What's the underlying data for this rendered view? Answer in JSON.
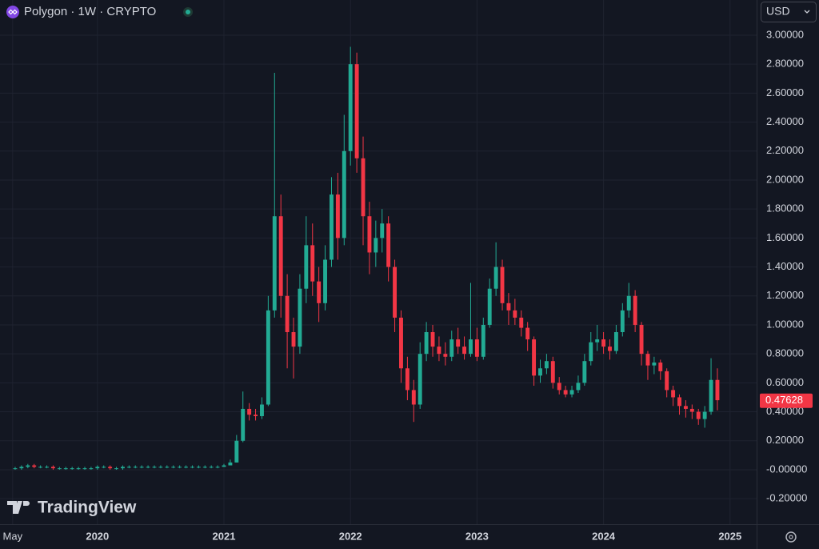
{
  "chart_data": {
    "type": "candlestick",
    "title": "Polygon · 1W · CRYPTO",
    "currency": "USD",
    "watermark": "TradingView",
    "up_color": "#22ab94",
    "down_color": "#f23645",
    "grid": true,
    "xlim": [
      2019.23,
      2025.21
    ],
    "xticks": [
      {
        "value": 2019.33,
        "label": "May"
      },
      2020,
      2021,
      2022,
      2023,
      2024,
      2025
    ],
    "ylim": [
      -0.376,
      3.243
    ],
    "yticks": [
      {
        "value": -0.2,
        "label": "-0.20000"
      },
      {
        "value": 0,
        "label": "-0.00000"
      },
      {
        "value": 0.2,
        "label": "0.20000"
      },
      {
        "value": 0.4,
        "label": "0.40000"
      },
      {
        "value": 0.6,
        "label": "0.60000"
      },
      {
        "value": 0.8,
        "label": "0.80000"
      },
      {
        "value": 1,
        "label": "1.00000"
      },
      {
        "value": 1.2,
        "label": "1.20000"
      },
      {
        "value": 1.4,
        "label": "1.40000"
      },
      {
        "value": 1.6,
        "label": "1.60000"
      },
      {
        "value": 1.8,
        "label": "1.80000"
      },
      {
        "value": 2,
        "label": "2.00000"
      },
      {
        "value": 2.2,
        "label": "2.20000"
      },
      {
        "value": 2.4,
        "label": "2.40000"
      },
      {
        "value": 2.6,
        "label": "2.60000"
      },
      {
        "value": 2.8,
        "label": "2.80000"
      },
      {
        "value": 3,
        "label": "3.00000"
      }
    ],
    "last_price": 0.47628,
    "x": [
      2019.35,
      2019.4,
      2019.45,
      2019.5,
      2019.55,
      2019.6,
      2019.65,
      2019.7,
      2019.75,
      2019.8,
      2019.85,
      2019.9,
      2019.95,
      2020,
      2020.05,
      2020.1,
      2020.15,
      2020.2,
      2020.25,
      2020.3,
      2020.35,
      2020.4,
      2020.45,
      2020.5,
      2020.55,
      2020.6,
      2020.65,
      2020.7,
      2020.75,
      2020.8,
      2020.85,
      2020.9,
      2020.95,
      2021,
      2021.05,
      2021.1,
      2021.15,
      2021.2,
      2021.25,
      2021.3,
      2021.35,
      2021.4,
      2021.45,
      2021.5,
      2021.55,
      2021.6,
      2021.65,
      2021.7,
      2021.75,
      2021.8,
      2021.85,
      2021.9,
      2021.95,
      2022,
      2022.05,
      2022.1,
      2022.15,
      2022.2,
      2022.25,
      2022.3,
      2022.35,
      2022.4,
      2022.45,
      2022.5,
      2022.55,
      2022.6,
      2022.65,
      2022.7,
      2022.75,
      2022.8,
      2022.85,
      2022.9,
      2022.95,
      2023,
      2023.05,
      2023.1,
      2023.15,
      2023.2,
      2023.25,
      2023.3,
      2023.35,
      2023.4,
      2023.45,
      2023.5,
      2023.55,
      2023.6,
      2023.65,
      2023.7,
      2023.75,
      2023.8,
      2023.85,
      2023.9,
      2023.95,
      2024,
      2024.05,
      2024.1,
      2024.15,
      2024.2,
      2024.25,
      2024.3,
      2024.35,
      2024.4,
      2024.45,
      2024.5,
      2024.55,
      2024.6,
      2024.65,
      2024.7,
      2024.75,
      2024.8,
      2024.85,
      2024.9
    ],
    "open": [
      0.01,
      0.01,
      0.02,
      0.03,
      0.02,
      0.02,
      0.02,
      0.01,
      0.01,
      0.01,
      0.01,
      0.01,
      0.01,
      0.01,
      0.02,
      0.02,
      0.01,
      0.01,
      0.02,
      0.02,
      0.02,
      0.02,
      0.02,
      0.02,
      0.02,
      0.02,
      0.02,
      0.02,
      0.02,
      0.02,
      0.02,
      0.02,
      0.02,
      0.02,
      0.03,
      0.05,
      0.2,
      0.42,
      0.38,
      0.37,
      0.45,
      1.1,
      1.75,
      1.2,
      0.95,
      0.85,
      1.25,
      1.55,
      1.3,
      1.15,
      1.45,
      1.9,
      1.6,
      2.2,
      2.8,
      2.15,
      1.75,
      1.5,
      1.6,
      1.7,
      1.4,
      1.05,
      0.7,
      0.55,
      0.45,
      0.8,
      0.95,
      0.85,
      0.8,
      0.78,
      0.9,
      0.85,
      0.8,
      0.9,
      0.78,
      1.0,
      1.25,
      1.4,
      1.15,
      1.1,
      1.05,
      0.98,
      0.9,
      0.65,
      0.7,
      0.75,
      0.6,
      0.55,
      0.52,
      0.55,
      0.6,
      0.75,
      0.88,
      0.9,
      0.85,
      0.82,
      0.95,
      1.1,
      1.2,
      1.0,
      0.8,
      0.72,
      0.74,
      0.68,
      0.55,
      0.5,
      0.44,
      0.42,
      0.4,
      0.35,
      0.4,
      0.62
    ],
    "high": [
      0.02,
      0.03,
      0.04,
      0.04,
      0.03,
      0.03,
      0.03,
      0.02,
      0.02,
      0.02,
      0.02,
      0.02,
      0.02,
      0.03,
      0.03,
      0.03,
      0.02,
      0.03,
      0.03,
      0.03,
      0.03,
      0.03,
      0.03,
      0.03,
      0.03,
      0.03,
      0.03,
      0.03,
      0.03,
      0.03,
      0.03,
      0.03,
      0.03,
      0.04,
      0.07,
      0.24,
      0.54,
      0.46,
      0.42,
      0.5,
      1.2,
      2.74,
      1.9,
      1.35,
      1.05,
      1.35,
      1.75,
      1.7,
      1.4,
      1.55,
      2.02,
      2.05,
      2.45,
      2.92,
      2.88,
      2.3,
      1.85,
      1.72,
      1.8,
      1.75,
      1.45,
      1.1,
      0.78,
      0.62,
      0.88,
      1.02,
      1.0,
      0.92,
      0.88,
      0.96,
      0.98,
      0.92,
      1.29,
      0.98,
      1.05,
      1.32,
      1.57,
      1.45,
      1.22,
      1.18,
      1.1,
      1.02,
      0.92,
      0.76,
      0.8,
      0.78,
      0.64,
      0.58,
      0.58,
      0.65,
      0.8,
      0.95,
      1.0,
      0.95,
      0.9,
      1.0,
      1.15,
      1.29,
      1.24,
      1.02,
      0.82,
      0.78,
      0.76,
      0.7,
      0.58,
      0.52,
      0.48,
      0.45,
      0.42,
      0.44,
      0.77,
      0.7
    ],
    "low": [
      0.0,
      0.0,
      0.01,
      0.01,
      0.01,
      0.01,
      0.0,
      0.0,
      0.0,
      0.0,
      0.0,
      0.0,
      0.0,
      0.0,
      0.01,
      0.0,
      0.0,
      0.0,
      0.01,
      0.01,
      0.01,
      0.01,
      0.01,
      0.01,
      0.01,
      0.01,
      0.01,
      0.01,
      0.01,
      0.01,
      0.01,
      0.01,
      0.01,
      0.02,
      0.03,
      0.05,
      0.19,
      0.34,
      0.34,
      0.35,
      0.44,
      1.05,
      1.05,
      0.7,
      0.63,
      0.8,
      1.15,
      1.2,
      1.02,
      1.1,
      1.4,
      1.45,
      1.55,
      2.1,
      2.05,
      1.55,
      1.35,
      1.4,
      1.5,
      1.3,
      0.95,
      0.6,
      0.48,
      0.33,
      0.42,
      0.75,
      0.78,
      0.75,
      0.72,
      0.75,
      0.8,
      0.76,
      0.78,
      0.75,
      0.76,
      0.98,
      1.2,
      1.1,
      1.0,
      1.0,
      0.92,
      0.82,
      0.58,
      0.6,
      0.66,
      0.56,
      0.52,
      0.5,
      0.5,
      0.53,
      0.58,
      0.72,
      0.82,
      0.8,
      0.76,
      0.8,
      0.92,
      1.05,
      0.95,
      0.72,
      0.62,
      0.66,
      0.62,
      0.5,
      0.44,
      0.38,
      0.36,
      0.35,
      0.31,
      0.29,
      0.38,
      0.41
    ],
    "close": [
      0.01,
      0.02,
      0.03,
      0.02,
      0.02,
      0.02,
      0.01,
      0.01,
      0.01,
      0.01,
      0.01,
      0.01,
      0.01,
      0.02,
      0.02,
      0.01,
      0.01,
      0.02,
      0.02,
      0.02,
      0.02,
      0.02,
      0.02,
      0.02,
      0.02,
      0.02,
      0.02,
      0.02,
      0.02,
      0.02,
      0.02,
      0.02,
      0.02,
      0.03,
      0.05,
      0.2,
      0.42,
      0.38,
      0.37,
      0.45,
      1.1,
      1.75,
      1.2,
      0.95,
      0.85,
      1.25,
      1.55,
      1.3,
      1.15,
      1.45,
      1.9,
      1.6,
      2.2,
      2.8,
      2.15,
      1.75,
      1.5,
      1.6,
      1.7,
      1.4,
      1.05,
      0.7,
      0.55,
      0.45,
      0.8,
      0.95,
      0.85,
      0.8,
      0.78,
      0.9,
      0.85,
      0.8,
      0.9,
      0.78,
      1.0,
      1.25,
      1.4,
      1.15,
      1.1,
      1.05,
      0.98,
      0.9,
      0.65,
      0.7,
      0.75,
      0.6,
      0.55,
      0.52,
      0.55,
      0.6,
      0.75,
      0.88,
      0.9,
      0.85,
      0.82,
      0.95,
      1.1,
      1.2,
      1.0,
      0.8,
      0.72,
      0.74,
      0.68,
      0.55,
      0.5,
      0.44,
      0.42,
      0.4,
      0.35,
      0.4,
      0.62,
      0.48
    ]
  }
}
